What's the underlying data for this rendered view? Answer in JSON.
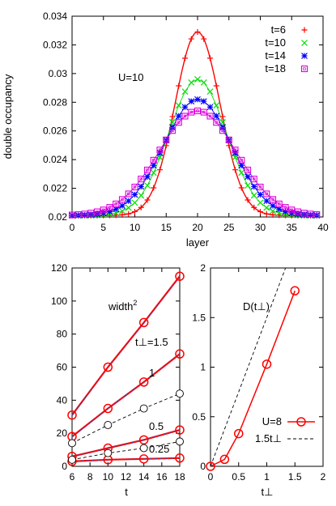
{
  "chart_data": [
    {
      "type": "scatter",
      "xlabel": "layer",
      "ylabel": "double occupancy",
      "annotation": "U=10",
      "xlim": [
        0,
        40
      ],
      "ylim": [
        0.02,
        0.034
      ],
      "xticks": [
        "0",
        "5",
        "10",
        "15",
        "20",
        "25",
        "30",
        "35",
        "40"
      ],
      "yticks": [
        "0.02",
        "0.022",
        "0.024",
        "0.026",
        "0.028",
        "0.03",
        "0.032",
        "0.034"
      ],
      "legend_position": "top-right",
      "center": 20,
      "series": [
        {
          "name": "t=6",
          "color": "#ff0000",
          "marker": "plus",
          "peak": 0.0329,
          "base": 0.0201,
          "sigma": 3.6,
          "fit_line": true
        },
        {
          "name": "t=10",
          "color": "#00dd00",
          "marker": "cross",
          "peak": 0.0296,
          "base": 0.0201,
          "sigma": 4.6
        },
        {
          "name": "t=14",
          "color": "#0000ff",
          "marker": "star",
          "peak": 0.0282,
          "base": 0.0201,
          "sigma": 5.4
        },
        {
          "name": "t=18",
          "color": "#dd00dd",
          "marker": "square",
          "peak": 0.0274,
          "base": 0.0201,
          "sigma": 6.2
        }
      ]
    },
    {
      "type": "line",
      "xlabel": "t",
      "title_base": "width",
      "title_sup": "2",
      "xlim": [
        6,
        18
      ],
      "ylim": [
        0,
        120
      ],
      "xticks": [
        "6",
        "8",
        "10",
        "12",
        "14",
        "16",
        "18"
      ],
      "yticks": [
        "0",
        "20",
        "40",
        "60",
        "80",
        "100",
        "120"
      ],
      "x": [
        6,
        10,
        14,
        18
      ],
      "series": [
        {
          "name": "t⊥=1.5",
          "values": [
            31,
            60,
            87,
            115
          ],
          "style": "red-circle"
        },
        {
          "name": "1",
          "values": [
            18,
            35,
            51,
            68
          ],
          "style": "red-circle"
        },
        {
          "name": "1 (dashed)",
          "values": [
            14,
            25,
            35,
            44
          ],
          "style": "dashed-open"
        },
        {
          "name": "0.5",
          "values": [
            6,
            11,
            16,
            22
          ],
          "style": "red-circle"
        },
        {
          "name": "0.25",
          "values": [
            3,
            4,
            4.5,
            5
          ],
          "style": "red-circle"
        },
        {
          "name": "0.5 (dashed)",
          "values": [
            4,
            8,
            11,
            15
          ],
          "style": "dashed-open"
        }
      ],
      "labels": [
        "t⊥=1.5",
        "1",
        "0.5",
        "0.25"
      ]
    },
    {
      "type": "line",
      "xlabel": "t⊥",
      "title": "D(t⊥)",
      "xlim": [
        0,
        2
      ],
      "ylim": [
        0,
        2
      ],
      "xticks": [
        "0",
        "0.5",
        "1",
        "1.5",
        "2"
      ],
      "yticks": [
        "0",
        "0.5",
        "1",
        "1.5",
        "2"
      ],
      "series": [
        {
          "name": "U=8",
          "x": [
            0,
            0.25,
            0.5,
            1.0,
            1.5
          ],
          "values": [
            0,
            0.07,
            0.33,
            1.03,
            1.77
          ],
          "color": "#ff0000"
        },
        {
          "name": "1.5t⊥",
          "x": [
            0,
            2
          ],
          "values": [
            0,
            3
          ],
          "color": "#000000",
          "dashed": true
        }
      ],
      "legend_position": "bottom-right"
    }
  ]
}
